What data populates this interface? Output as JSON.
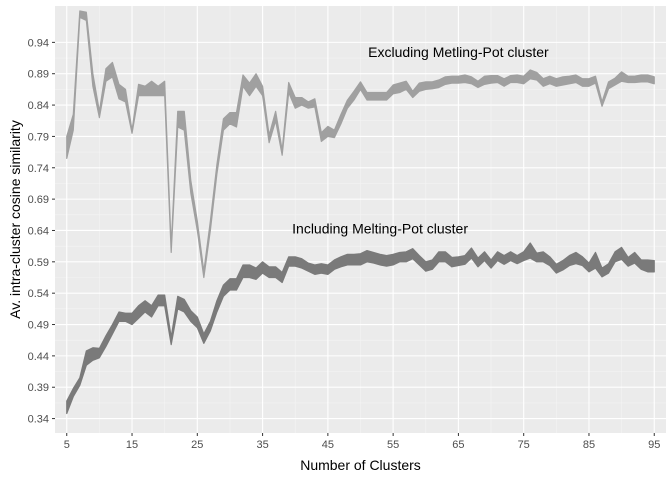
{
  "chart_data": {
    "type": "line",
    "title": "",
    "xlabel": "Number of Clusters",
    "ylabel": "Av. intra-cluster cosine similarity",
    "xlim": [
      3.2,
      96.8
    ],
    "ylim": [
      0.317,
      0.998
    ],
    "x_ticks": [
      5,
      15,
      25,
      35,
      45,
      55,
      65,
      75,
      85,
      95
    ],
    "y_ticks": [
      0.34,
      0.39,
      0.44,
      0.49,
      0.54,
      0.59,
      0.64,
      0.69,
      0.74,
      0.79,
      0.84,
      0.89,
      0.94
    ],
    "grid": true,
    "background": "#ebebeb",
    "annotations": [
      {
        "text": "Excluding Metling-Pot cluster",
        "x": 65,
        "y": 0.925
      },
      {
        "text": "Including Melting-Pot cluster",
        "x": 53,
        "y": 0.643
      }
    ],
    "series": [
      {
        "color": "#a0a0a0",
        "x": [
          5,
          6,
          7,
          8,
          9,
          10,
          11,
          12,
          13,
          14,
          15,
          16,
          17,
          18,
          19,
          20,
          21,
          22,
          23,
          24,
          25,
          26,
          27,
          28,
          29,
          30,
          31,
          32,
          33,
          34,
          35,
          36,
          37,
          38,
          39,
          40,
          41,
          42,
          43,
          44,
          45,
          46,
          47,
          48,
          49,
          50,
          51,
          52,
          53,
          54,
          55,
          56,
          57,
          58,
          59,
          60,
          61,
          62,
          63,
          64,
          65,
          66,
          67,
          68,
          69,
          70,
          71,
          72,
          73,
          74,
          75,
          76,
          77,
          78,
          79,
          80,
          81,
          82,
          83,
          84,
          85,
          86,
          87,
          88,
          89,
          90,
          91,
          92,
          93,
          94,
          95
        ],
        "lower": [
          0.755,
          0.8,
          0.98,
          0.975,
          0.87,
          0.82,
          0.878,
          0.885,
          0.85,
          0.845,
          0.795,
          0.855,
          0.855,
          0.855,
          0.855,
          0.855,
          0.605,
          0.805,
          0.8,
          0.7,
          0.64,
          0.565,
          0.64,
          0.73,
          0.8,
          0.81,
          0.805,
          0.87,
          0.855,
          0.87,
          0.855,
          0.78,
          0.815,
          0.76,
          0.86,
          0.835,
          0.84,
          0.835,
          0.837,
          0.782,
          0.79,
          0.788,
          0.81,
          0.835,
          0.848,
          0.865,
          0.848,
          0.848,
          0.848,
          0.848,
          0.858,
          0.86,
          0.865,
          0.852,
          0.862,
          0.865,
          0.866,
          0.868,
          0.873,
          0.875,
          0.875,
          0.876,
          0.874,
          0.868,
          0.873,
          0.875,
          0.876,
          0.87,
          0.876,
          0.876,
          0.874,
          0.882,
          0.88,
          0.87,
          0.874,
          0.87,
          0.872,
          0.874,
          0.876,
          0.87,
          0.87,
          0.875,
          0.838,
          0.866,
          0.872,
          0.878,
          0.876,
          0.876,
          0.877,
          0.877,
          0.874
        ],
        "upper": [
          0.79,
          0.825,
          0.99,
          0.988,
          0.89,
          0.83,
          0.898,
          0.908,
          0.873,
          0.865,
          0.8,
          0.873,
          0.87,
          0.878,
          0.87,
          0.878,
          0.615,
          0.83,
          0.83,
          0.72,
          0.655,
          0.575,
          0.655,
          0.745,
          0.818,
          0.828,
          0.828,
          0.888,
          0.875,
          0.89,
          0.87,
          0.792,
          0.83,
          0.768,
          0.876,
          0.852,
          0.852,
          0.845,
          0.85,
          0.796,
          0.806,
          0.8,
          0.825,
          0.848,
          0.862,
          0.877,
          0.86,
          0.86,
          0.86,
          0.86,
          0.872,
          0.875,
          0.878,
          0.862,
          0.875,
          0.877,
          0.877,
          0.88,
          0.885,
          0.886,
          0.886,
          0.888,
          0.885,
          0.878,
          0.886,
          0.887,
          0.887,
          0.882,
          0.887,
          0.888,
          0.886,
          0.896,
          0.892,
          0.882,
          0.886,
          0.882,
          0.885,
          0.886,
          0.888,
          0.882,
          0.882,
          0.886,
          0.845,
          0.877,
          0.883,
          0.893,
          0.886,
          0.886,
          0.888,
          0.888,
          0.885
        ]
      },
      {
        "color": "#7a7a7a",
        "x": [
          5,
          6,
          7,
          8,
          9,
          10,
          11,
          12,
          13,
          14,
          15,
          16,
          17,
          18,
          19,
          20,
          21,
          22,
          23,
          24,
          25,
          26,
          27,
          28,
          29,
          30,
          31,
          32,
          33,
          34,
          35,
          36,
          37,
          38,
          39,
          40,
          41,
          42,
          43,
          44,
          45,
          46,
          47,
          48,
          49,
          50,
          51,
          52,
          53,
          54,
          55,
          56,
          57,
          58,
          59,
          60,
          61,
          62,
          63,
          64,
          65,
          66,
          67,
          68,
          69,
          70,
          71,
          72,
          73,
          74,
          75,
          76,
          77,
          78,
          79,
          80,
          81,
          82,
          83,
          84,
          85,
          86,
          87,
          88,
          89,
          90,
          91,
          92,
          93,
          94,
          95
        ],
        "lower": [
          0.348,
          0.375,
          0.393,
          0.425,
          0.433,
          0.437,
          0.455,
          0.475,
          0.495,
          0.495,
          0.49,
          0.5,
          0.51,
          0.502,
          0.52,
          0.52,
          0.458,
          0.515,
          0.51,
          0.495,
          0.485,
          0.46,
          0.48,
          0.51,
          0.535,
          0.545,
          0.545,
          0.565,
          0.565,
          0.562,
          0.572,
          0.565,
          0.565,
          0.557,
          0.583,
          0.583,
          0.58,
          0.575,
          0.57,
          0.572,
          0.57,
          0.578,
          0.582,
          0.585,
          0.585,
          0.585,
          0.59,
          0.588,
          0.585,
          0.583,
          0.585,
          0.59,
          0.59,
          0.595,
          0.585,
          0.575,
          0.578,
          0.59,
          0.59,
          0.582,
          0.584,
          0.586,
          0.596,
          0.582,
          0.592,
          0.58,
          0.592,
          0.586,
          0.592,
          0.587,
          0.592,
          0.596,
          0.59,
          0.59,
          0.584,
          0.572,
          0.577,
          0.584,
          0.587,
          0.584,
          0.574,
          0.58,
          0.566,
          0.572,
          0.59,
          0.594,
          0.583,
          0.588,
          0.578,
          0.574,
          0.574
        ],
        "upper": [
          0.368,
          0.388,
          0.405,
          0.448,
          0.453,
          0.452,
          0.472,
          0.49,
          0.51,
          0.508,
          0.508,
          0.52,
          0.528,
          0.52,
          0.537,
          0.537,
          0.47,
          0.535,
          0.53,
          0.512,
          0.502,
          0.475,
          0.495,
          0.528,
          0.553,
          0.563,
          0.563,
          0.585,
          0.585,
          0.58,
          0.59,
          0.582,
          0.582,
          0.573,
          0.598,
          0.598,
          0.595,
          0.588,
          0.585,
          0.587,
          0.585,
          0.593,
          0.598,
          0.602,
          0.602,
          0.603,
          0.608,
          0.605,
          0.602,
          0.6,
          0.602,
          0.605,
          0.606,
          0.611,
          0.6,
          0.59,
          0.593,
          0.606,
          0.606,
          0.597,
          0.598,
          0.6,
          0.612,
          0.596,
          0.606,
          0.593,
          0.606,
          0.6,
          0.606,
          0.6,
          0.606,
          0.62,
          0.604,
          0.606,
          0.598,
          0.586,
          0.592,
          0.6,
          0.605,
          0.598,
          0.588,
          0.605,
          0.58,
          0.587,
          0.606,
          0.613,
          0.597,
          0.605,
          0.593,
          0.593,
          0.592
        ]
      }
    ]
  }
}
